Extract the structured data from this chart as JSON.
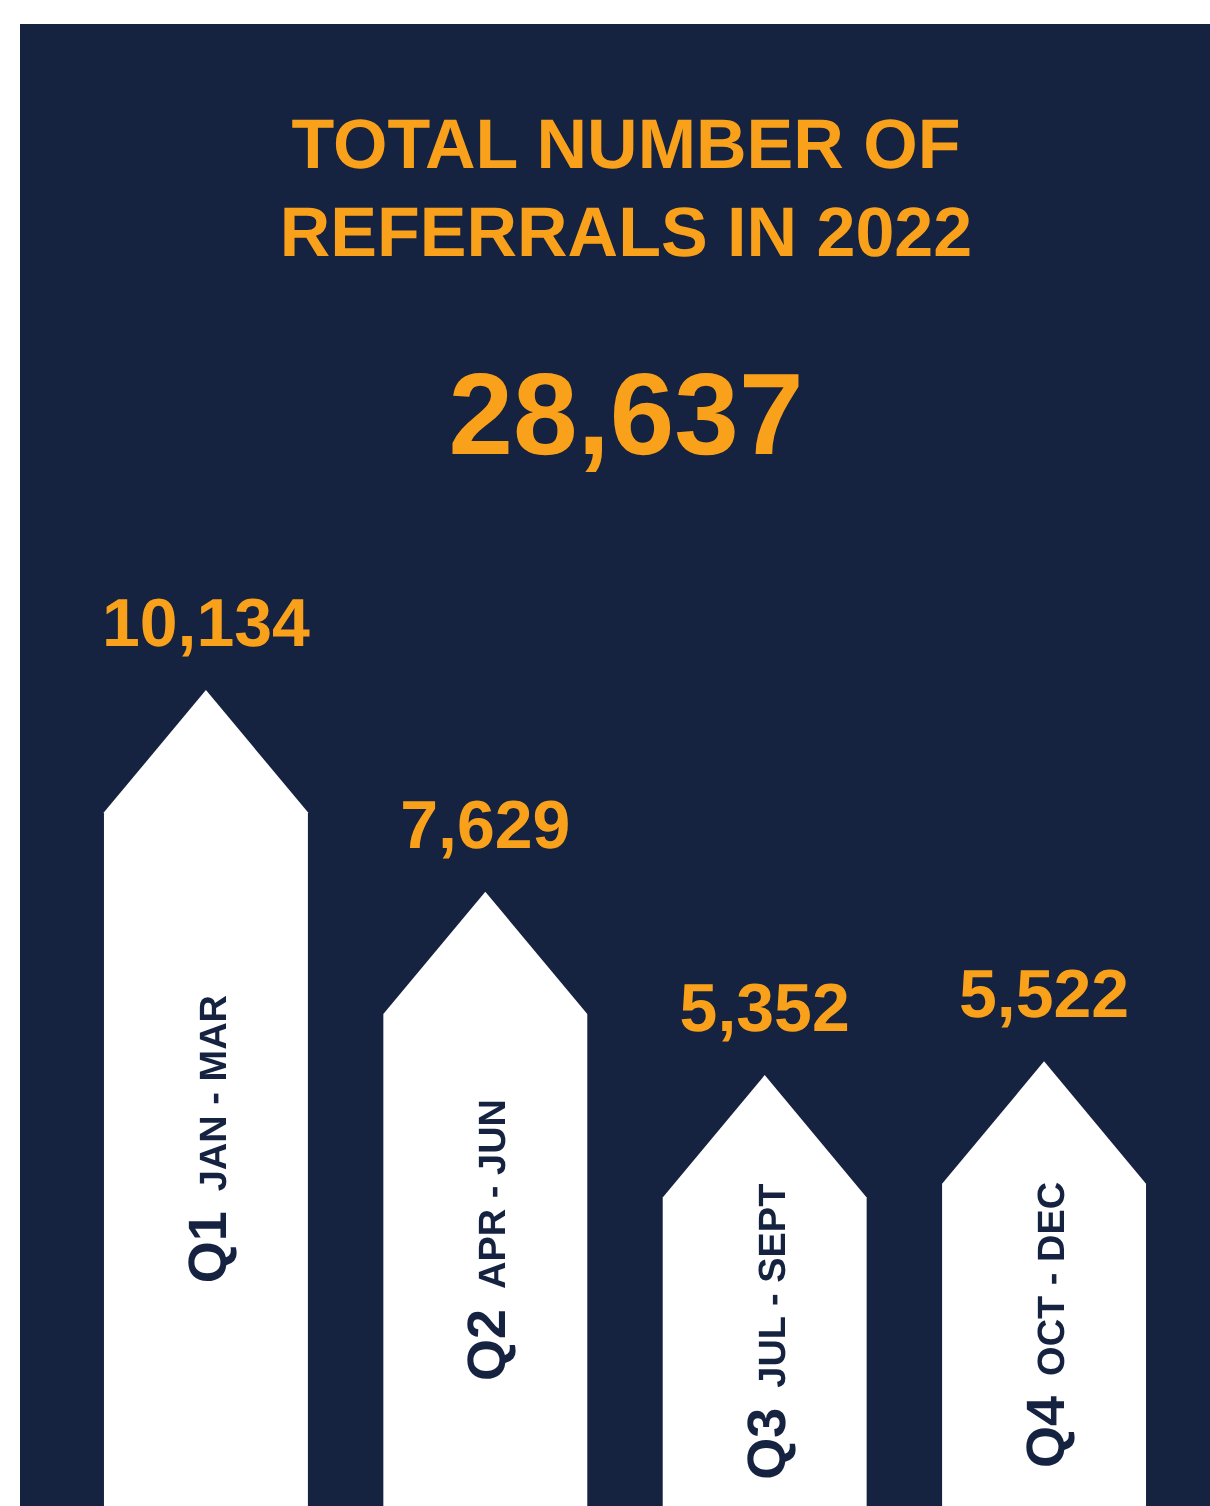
{
  "chart_data": {
    "type": "bar",
    "title": "TOTAL NUMBER OF REFERRALS IN 2022",
    "subtitle": "28,637",
    "categories": [
      "Q1 JAN - MAR",
      "Q2 APR - JUN",
      "Q3 JUL - SEPT",
      "Q4 OCT - DEC"
    ],
    "values": [
      10134,
      7629,
      5352,
      5522
    ],
    "value_labels": [
      "10,134",
      "7,629",
      "5,352",
      "5,522"
    ],
    "color": "#ffffff"
  }
}
